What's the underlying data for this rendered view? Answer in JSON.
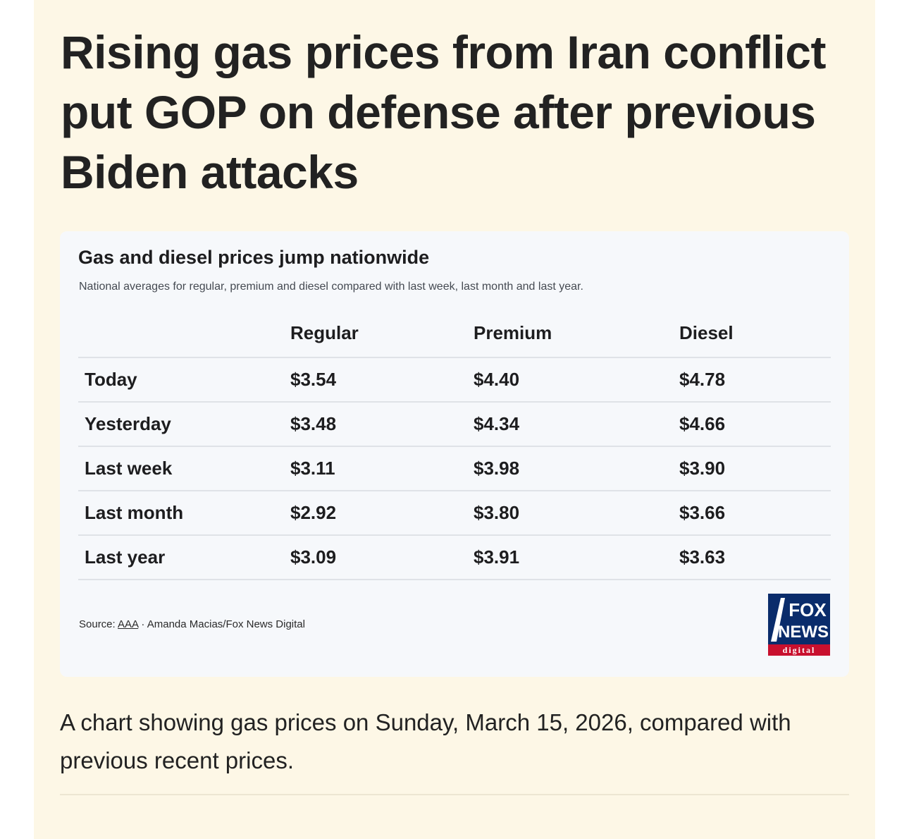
{
  "article": {
    "headline": "Rising gas prices from Iran conflict put GOP on defense after previous Biden attacks",
    "caption": "A chart showing gas prices on Sunday, March 15, 2026, compared with previous recent prices."
  },
  "graphic": {
    "title": "Gas and diesel prices jump nationwide",
    "subtitle": "National averages for regular, premium and diesel compared with last week, last month and last year.",
    "columns": [
      "Regular",
      "Premium",
      "Diesel"
    ],
    "rows": [
      {
        "label": "Today",
        "regular": "$3.54",
        "premium": "$4.40",
        "diesel": "$4.78"
      },
      {
        "label": "Yesterday",
        "regular": "$3.48",
        "premium": "$4.34",
        "diesel": "$4.66"
      },
      {
        "label": "Last week",
        "regular": "$3.11",
        "premium": "$3.98",
        "diesel": "$3.90"
      },
      {
        "label": "Last month",
        "regular": "$2.92",
        "premium": "$3.80",
        "diesel": "$3.66"
      },
      {
        "label": "Last year",
        "regular": "$3.09",
        "premium": "$3.91",
        "diesel": "$3.63"
      }
    ],
    "source_prefix": "Source: ",
    "source_link": "AAA",
    "source_suffix": " · Amanda Macias/Fox News Digital",
    "logo": {
      "line1": "FOX",
      "line2": "NEWS",
      "line3": "digital",
      "colors": {
        "blue": "#0a2c6b",
        "red": "#c8102e"
      }
    }
  },
  "chart_data": {
    "type": "table",
    "title": "Gas and diesel prices jump nationwide",
    "subtitle": "National averages for regular, premium and diesel compared with last week, last month and last year.",
    "columns": [
      "Regular",
      "Premium",
      "Diesel"
    ],
    "rows": [
      "Today",
      "Yesterday",
      "Last week",
      "Last month",
      "Last year"
    ],
    "values": [
      [
        3.54,
        4.4,
        4.78
      ],
      [
        3.48,
        4.34,
        4.66
      ],
      [
        3.11,
        3.98,
        3.9
      ],
      [
        2.92,
        3.8,
        3.66
      ],
      [
        3.09,
        3.91,
        3.63
      ]
    ]
  }
}
